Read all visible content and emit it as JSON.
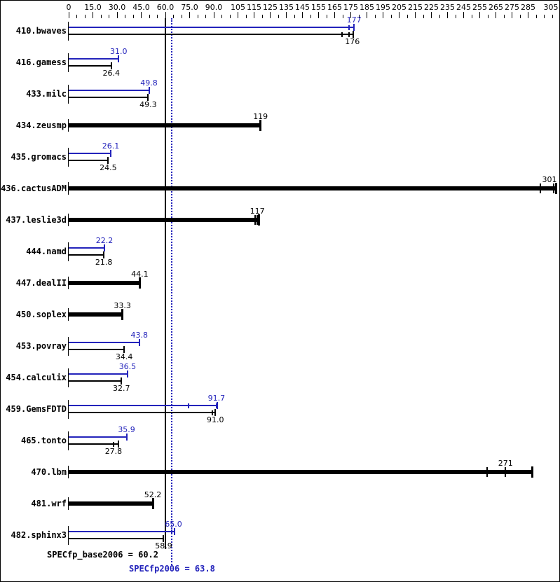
{
  "colors": {
    "peak_blue": "#2323bb",
    "base_black": "#000000"
  },
  "chart_data": {
    "type": "bar",
    "orientation": "horizontal",
    "title": "",
    "legend": "peak results drawn in blue above base results drawn in black; dotted/solid vertical lines mark the overall means",
    "x_axis": {
      "min": 0,
      "max": 305,
      "minor_step": 5,
      "tick_label_values": [
        0,
        15,
        30,
        45,
        60,
        75,
        90,
        105,
        115,
        125,
        135,
        145,
        155,
        165,
        175,
        185,
        195,
        205,
        215,
        225,
        235,
        245,
        255,
        265,
        275,
        285,
        305
      ],
      "tick_labels": [
        "0",
        "15.0",
        "30.0",
        "45.0",
        "60.0",
        "75.0",
        "90.0",
        "105",
        "115",
        "125",
        "135",
        "145",
        "155",
        "165",
        "175",
        "185",
        "195",
        "205",
        "215",
        "225",
        "235",
        "245",
        "255",
        "265",
        "275",
        "285",
        "305"
      ]
    },
    "benchmarks": [
      {
        "name": "410.bwaves",
        "single": false,
        "peak": {
          "label": "177",
          "value": 177,
          "end": 177,
          "runs": [
            174
          ]
        },
        "base": {
          "label": "176",
          "value": 176,
          "end": 176.5,
          "runs": [
            169.5,
            174
          ]
        }
      },
      {
        "name": "416.gamess",
        "single": false,
        "peak": {
          "label": "31.0",
          "value": 31.0,
          "end": 31.0,
          "runs": []
        },
        "base": {
          "label": "26.4",
          "value": 26.4,
          "end": 26.4,
          "runs": []
        }
      },
      {
        "name": "433.milc",
        "single": false,
        "peak": {
          "label": "49.8",
          "value": 49.8,
          "end": 49.8,
          "runs": []
        },
        "base": {
          "label": "49.3",
          "value": 49.3,
          "end": 49.3,
          "runs": []
        }
      },
      {
        "name": "434.zeusmp",
        "single": true,
        "peak": null,
        "base": {
          "label": "119",
          "value": 119,
          "end": 119,
          "runs": []
        }
      },
      {
        "name": "435.gromacs",
        "single": false,
        "peak": {
          "label": "26.1",
          "value": 26.1,
          "end": 26.1,
          "runs": []
        },
        "base": {
          "label": "24.5",
          "value": 24.5,
          "end": 24.5,
          "runs": []
        }
      },
      {
        "name": "436.cactusADM",
        "single": true,
        "peak": null,
        "base": {
          "label": "301",
          "value": 301,
          "end": 302.5,
          "runs": [
            292.5,
            301
          ]
        }
      },
      {
        "name": "437.leslie3d",
        "single": true,
        "peak": null,
        "base": {
          "label": "117",
          "value": 117,
          "end": 118,
          "runs": [
            115.5,
            117
          ]
        }
      },
      {
        "name": "444.namd",
        "single": false,
        "peak": {
          "label": "22.2",
          "value": 22.2,
          "end": 22.2,
          "runs": []
        },
        "base": {
          "label": "21.8",
          "value": 21.8,
          "end": 21.8,
          "runs": []
        }
      },
      {
        "name": "447.dealII",
        "single": true,
        "peak": null,
        "base": {
          "label": "44.1",
          "value": 44.1,
          "end": 44.1,
          "runs": []
        }
      },
      {
        "name": "450.soplex",
        "single": true,
        "peak": null,
        "base": {
          "label": "33.3",
          "value": 33.3,
          "end": 33.3,
          "runs": []
        }
      },
      {
        "name": "453.povray",
        "single": false,
        "peak": {
          "label": "43.8",
          "value": 43.8,
          "end": 43.8,
          "runs": []
        },
        "base": {
          "label": "34.4",
          "value": 34.4,
          "end": 34.4,
          "runs": []
        }
      },
      {
        "name": "454.calculix",
        "single": false,
        "peak": {
          "label": "36.5",
          "value": 36.5,
          "end": 36.5,
          "runs": []
        },
        "base": {
          "label": "32.7",
          "value": 32.7,
          "end": 32.7,
          "runs": []
        }
      },
      {
        "name": "459.GemsFDTD",
        "single": false,
        "peak": {
          "label": "91.7",
          "value": 91.7,
          "end": 92.3,
          "runs": [
            74.5,
            91.7
          ]
        },
        "base": {
          "label": "91.0",
          "value": 91.0,
          "end": 91.0,
          "runs": [
            89
          ]
        }
      },
      {
        "name": "465.tonto",
        "single": false,
        "peak": {
          "label": "35.9",
          "value": 35.9,
          "end": 35.9,
          "runs": []
        },
        "base": {
          "label": "27.8",
          "value": 27.8,
          "end": 31,
          "runs": [
            27.8
          ]
        }
      },
      {
        "name": "470.lbm",
        "single": true,
        "peak": null,
        "base": {
          "label": "271",
          "value": 271,
          "end": 287.5,
          "runs": [
            259.5,
            271
          ]
        }
      },
      {
        "name": "481.wrf",
        "single": true,
        "peak": null,
        "base": {
          "label": "52.2",
          "value": 52.2,
          "end": 52.2,
          "runs": []
        }
      },
      {
        "name": "482.sphinx3",
        "single": false,
        "peak": {
          "label": "65.0",
          "value": 65.0,
          "end": 65.5,
          "runs": [
            63.8
          ]
        },
        "base": {
          "label": "58.9",
          "value": 58.9,
          "end": 58.9,
          "runs": []
        }
      }
    ],
    "means": {
      "base": {
        "label": "SPECfp_base2006 = 60.2",
        "value": 60.2
      },
      "peak": {
        "label": "SPECfp2006 = 63.8",
        "value": 63.8
      }
    }
  }
}
